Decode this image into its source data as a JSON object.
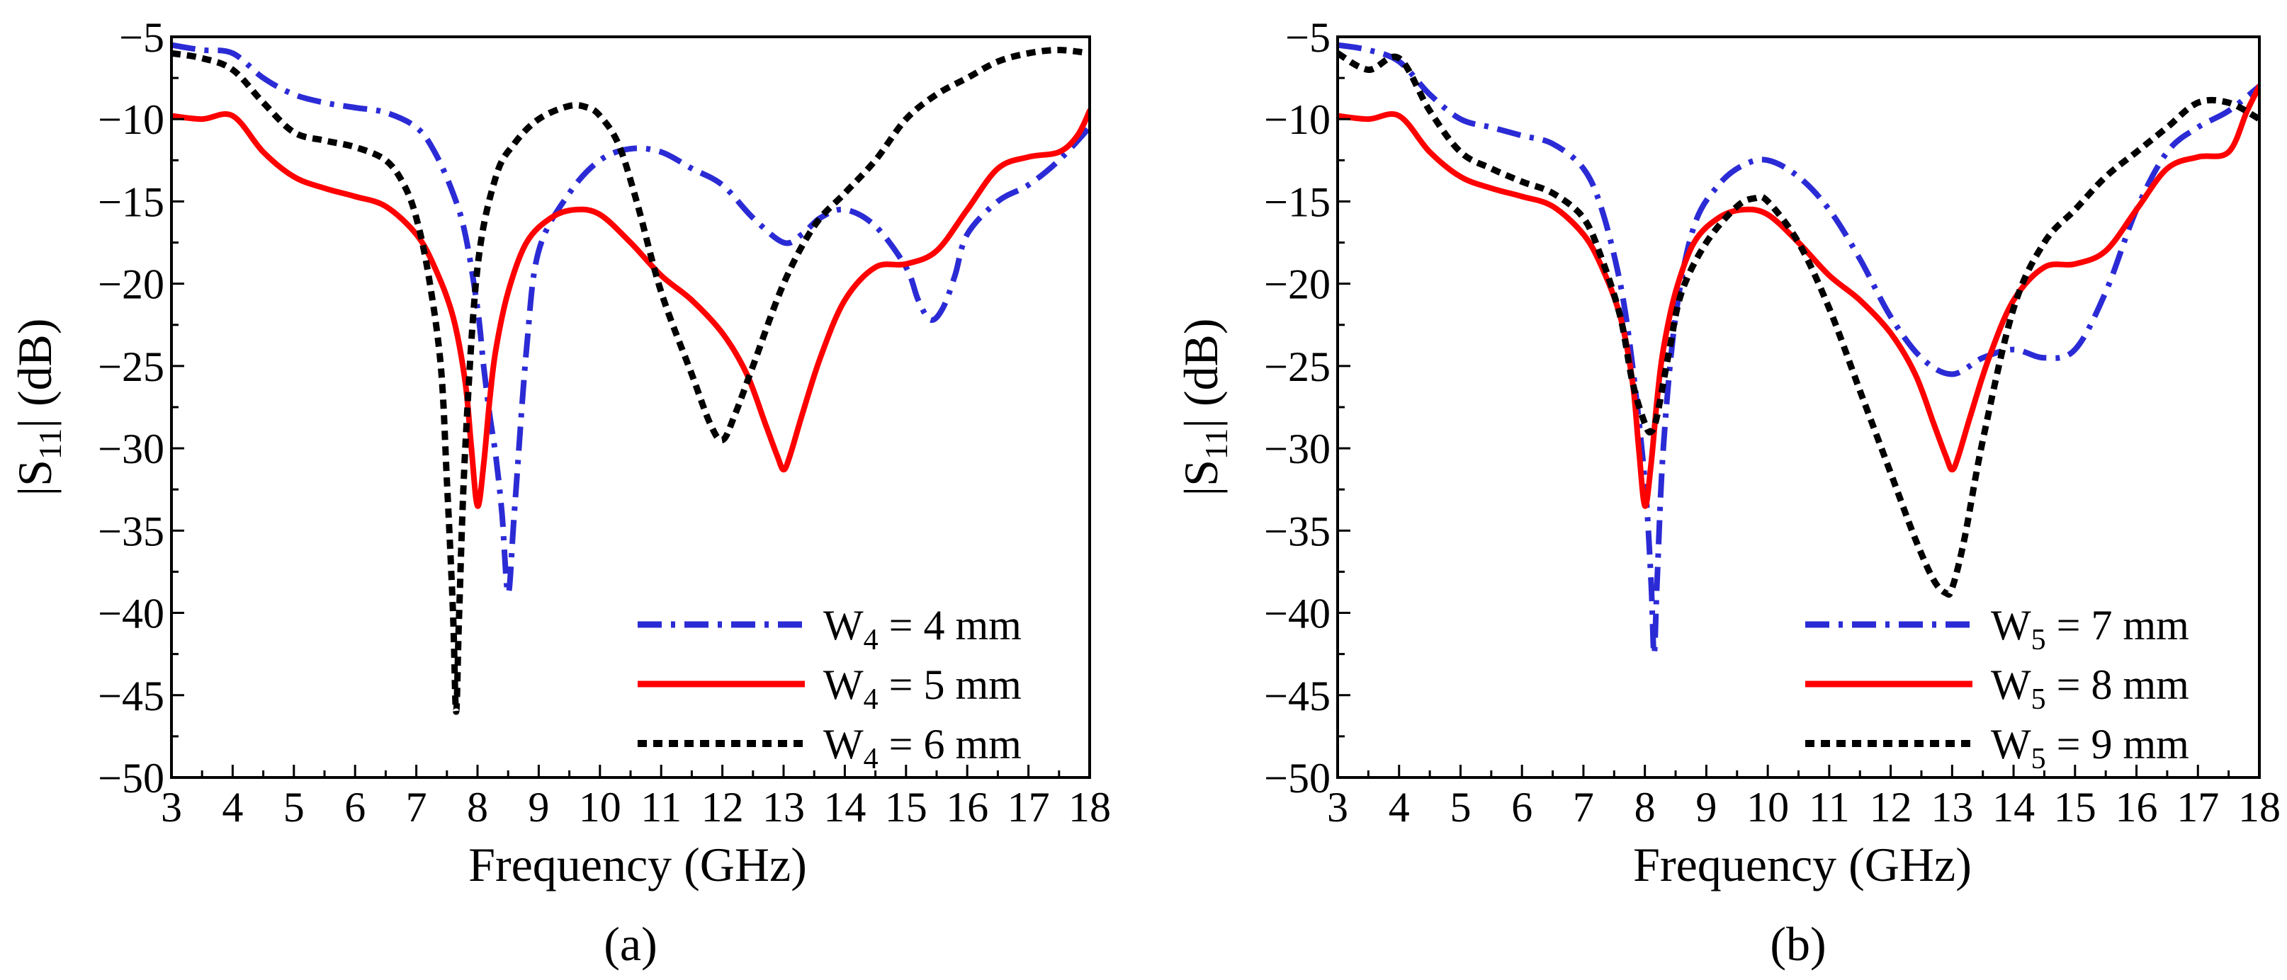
{
  "chart_data": [
    {
      "type": "line",
      "panel_label": "(a)",
      "title": "",
      "xlabel": "Frequency (GHz)",
      "ylabel_main": "|S",
      "ylabel_sub": "11",
      "ylabel_rest": "| (dB)",
      "xlim": [
        3,
        18
      ],
      "ylim": [
        -50,
        -5
      ],
      "xticks": [
        "3",
        "4",
        "5",
        "6",
        "7",
        "8",
        "9",
        "10",
        "11",
        "12",
        "13",
        "14",
        "15",
        "16",
        "17",
        "18"
      ],
      "yticks": [
        "-5",
        "-10",
        "-15",
        "-20",
        "-25",
        "-30",
        "-35",
        "-40",
        "-45",
        "-50"
      ],
      "grid": false,
      "legend_position": "bottom-right",
      "series": [
        {
          "name": "W4 = 4 mm",
          "legend_main": "W",
          "legend_sub": "4",
          "legend_rest": " = 4 mm",
          "color": "#2b2bd6",
          "style": "dashdot",
          "x": [
            3.0,
            3.5,
            4.0,
            4.5,
            5.0,
            5.5,
            6.0,
            6.5,
            7.0,
            7.3,
            7.6,
            7.8,
            8.0,
            8.1,
            8.2,
            8.3,
            8.4,
            8.5,
            8.6,
            8.8,
            9.0,
            9.5,
            10.0,
            10.5,
            11.0,
            11.5,
            12.0,
            12.5,
            13.0,
            13.3,
            13.6,
            14.0,
            14.5,
            15.0,
            15.2,
            15.4,
            15.6,
            15.8,
            16.0,
            16.5,
            17.0,
            17.5,
            18.0
          ],
          "y": [
            -5.5,
            -5.8,
            -6.0,
            -7.5,
            -8.5,
            -9.0,
            -9.3,
            -9.6,
            -10.5,
            -12.0,
            -14.5,
            -17.0,
            -21.5,
            -25.0,
            -28.0,
            -30.5,
            -34.0,
            -38.8,
            -34.0,
            -24.0,
            -18.0,
            -14.5,
            -12.5,
            -11.8,
            -12.0,
            -13.0,
            -14.0,
            -16.0,
            -17.5,
            -17.0,
            -16.0,
            -15.5,
            -16.5,
            -19.0,
            -21.0,
            -22.2,
            -21.5,
            -19.5,
            -17.0,
            -15.0,
            -14.0,
            -12.5,
            -10.5
          ]
        },
        {
          "name": "W4 = 5 mm",
          "legend_main": "W",
          "legend_sub": "4",
          "legend_rest": " = 5 mm",
          "color": "#ff0000",
          "style": "solid",
          "x": [
            3.0,
            3.5,
            4.0,
            4.5,
            5.0,
            5.5,
            6.0,
            6.5,
            7.0,
            7.3,
            7.6,
            7.8,
            7.9,
            8.0,
            8.1,
            8.2,
            8.3,
            8.5,
            8.8,
            9.2,
            9.6,
            10.0,
            10.5,
            11.0,
            11.5,
            12.0,
            12.4,
            12.7,
            12.9,
            13.0,
            13.1,
            13.3,
            13.6,
            14.0,
            14.5,
            15.0,
            15.5,
            16.0,
            16.5,
            17.0,
            17.5,
            17.8,
            18.0
          ],
          "y": [
            -9.8,
            -10.0,
            -9.8,
            -12.0,
            -13.5,
            -14.2,
            -14.7,
            -15.3,
            -17.0,
            -19.0,
            -22.0,
            -26.0,
            -30.0,
            -33.5,
            -31.0,
            -27.0,
            -24.0,
            -20.5,
            -17.5,
            -16.0,
            -15.5,
            -15.8,
            -17.5,
            -19.5,
            -21.0,
            -23.0,
            -25.5,
            -28.5,
            -30.5,
            -31.3,
            -30.5,
            -28.0,
            -24.5,
            -21.0,
            -19.0,
            -18.8,
            -18.0,
            -15.5,
            -13.0,
            -12.3,
            -12.0,
            -11.0,
            -9.5
          ]
        },
        {
          "name": "W4 = 6 mm",
          "legend_main": "W",
          "legend_sub": "4",
          "legend_rest": " = 6 mm",
          "color": "#000000",
          "style": "dotted",
          "x": [
            3.0,
            3.5,
            4.0,
            4.5,
            5.0,
            5.5,
            6.0,
            6.5,
            6.8,
            7.0,
            7.2,
            7.4,
            7.5,
            7.6,
            7.65,
            7.7,
            7.8,
            8.0,
            8.3,
            8.6,
            9.0,
            9.5,
            9.8,
            10.0,
            10.3,
            10.6,
            11.0,
            11.5,
            11.8,
            12.0,
            12.2,
            12.5,
            13.0,
            13.5,
            14.0,
            14.5,
            15.0,
            15.5,
            16.0,
            16.5,
            17.0,
            17.5,
            18.0
          ],
          "y": [
            -6.0,
            -6.3,
            -7.0,
            -9.0,
            -10.8,
            -11.3,
            -11.7,
            -12.5,
            -14.0,
            -16.0,
            -19.5,
            -25.0,
            -32.0,
            -40.0,
            -46.0,
            -40.0,
            -30.0,
            -19.0,
            -13.5,
            -11.5,
            -10.0,
            -9.2,
            -9.3,
            -9.8,
            -11.5,
            -15.0,
            -20.5,
            -25.5,
            -28.5,
            -29.5,
            -28.0,
            -25.0,
            -20.0,
            -16.5,
            -14.5,
            -12.5,
            -10.0,
            -8.5,
            -7.5,
            -6.5,
            -6.0,
            -5.8,
            -6.0
          ]
        }
      ]
    },
    {
      "type": "line",
      "panel_label": "(b)",
      "title": "",
      "xlabel": "Frequency (GHz)",
      "ylabel_main": "|S",
      "ylabel_sub": "11",
      "ylabel_rest": "| (dB)",
      "xlim": [
        3,
        18
      ],
      "ylim": [
        -50,
        -5
      ],
      "xticks": [
        "3",
        "4",
        "5",
        "6",
        "7",
        "8",
        "9",
        "10",
        "11",
        "12",
        "13",
        "14",
        "15",
        "16",
        "17",
        "18"
      ],
      "yticks": [
        "-5",
        "-10",
        "-15",
        "-20",
        "-25",
        "-30",
        "-35",
        "-40",
        "-45",
        "-50"
      ],
      "grid": false,
      "legend_position": "bottom-right",
      "series": [
        {
          "name": "W5 = 7 mm",
          "legend_main": "W",
          "legend_sub": "5",
          "legend_rest": " = 7 mm",
          "color": "#2b2bd6",
          "style": "dashdot",
          "x": [
            3.0,
            3.5,
            4.0,
            4.5,
            5.0,
            5.5,
            6.0,
            6.5,
            7.0,
            7.3,
            7.6,
            7.8,
            8.0,
            8.1,
            8.15,
            8.2,
            8.3,
            8.5,
            8.8,
            9.2,
            9.6,
            10.0,
            10.5,
            11.0,
            11.5,
            12.0,
            12.5,
            13.0,
            13.5,
            14.0,
            14.5,
            15.0,
            15.5,
            16.0,
            16.5,
            17.0,
            17.5,
            18.0
          ],
          "y": [
            -5.5,
            -5.8,
            -6.5,
            -8.5,
            -10.0,
            -10.5,
            -11.0,
            -11.5,
            -13.0,
            -15.5,
            -20.0,
            -25.0,
            -32.0,
            -38.0,
            -42.5,
            -38.0,
            -30.0,
            -22.0,
            -16.5,
            -14.0,
            -12.8,
            -12.5,
            -13.5,
            -15.5,
            -18.5,
            -22.0,
            -24.5,
            -25.5,
            -24.5,
            -24.0,
            -24.5,
            -24.0,
            -20.5,
            -15.5,
            -12.0,
            -10.5,
            -9.5,
            -8.0
          ]
        },
        {
          "name": "W5 = 8 mm",
          "legend_main": "W",
          "legend_sub": "5",
          "legend_rest": " = 8 mm",
          "color": "#ff0000",
          "style": "solid",
          "x": [
            3.0,
            3.5,
            4.0,
            4.5,
            5.0,
            5.5,
            6.0,
            6.5,
            7.0,
            7.3,
            7.6,
            7.8,
            7.9,
            8.0,
            8.1,
            8.2,
            8.3,
            8.5,
            8.8,
            9.2,
            9.6,
            10.0,
            10.5,
            11.0,
            11.5,
            12.0,
            12.4,
            12.7,
            12.9,
            13.0,
            13.1,
            13.3,
            13.6,
            14.0,
            14.5,
            15.0,
            15.5,
            16.0,
            16.5,
            17.0,
            17.5,
            17.8,
            18.0
          ],
          "y": [
            -9.8,
            -10.0,
            -9.8,
            -12.0,
            -13.5,
            -14.2,
            -14.7,
            -15.3,
            -17.0,
            -19.0,
            -22.0,
            -26.0,
            -30.0,
            -33.5,
            -31.0,
            -27.0,
            -24.0,
            -20.5,
            -17.5,
            -16.0,
            -15.5,
            -15.8,
            -17.5,
            -19.5,
            -21.0,
            -23.0,
            -25.5,
            -28.5,
            -30.5,
            -31.3,
            -30.5,
            -28.0,
            -24.5,
            -21.0,
            -19.0,
            -18.8,
            -18.0,
            -15.5,
            -13.0,
            -12.3,
            -12.0,
            -9.5,
            -8.0
          ]
        },
        {
          "name": "W5 = 9 mm",
          "legend_main": "W",
          "legend_sub": "5",
          "legend_rest": " = 9 mm",
          "color": "#000000",
          "style": "dotted",
          "x": [
            3.0,
            3.5,
            4.0,
            4.5,
            5.0,
            5.5,
            6.0,
            6.5,
            7.0,
            7.3,
            7.6,
            7.8,
            8.0,
            8.1,
            8.2,
            8.4,
            8.6,
            9.0,
            9.5,
            9.8,
            10.0,
            10.5,
            11.0,
            11.5,
            12.0,
            12.4,
            12.7,
            12.9,
            13.0,
            13.2,
            13.5,
            14.0,
            14.5,
            15.0,
            15.5,
            16.0,
            16.5,
            17.0,
            17.5,
            18.0
          ],
          "y": [
            -6.0,
            -7.0,
            -6.3,
            -9.5,
            -12.0,
            -13.0,
            -13.8,
            -14.5,
            -16.0,
            -18.5,
            -22.0,
            -26.0,
            -28.5,
            -29.0,
            -28.0,
            -24.0,
            -20.5,
            -17.5,
            -15.3,
            -14.8,
            -15.0,
            -17.5,
            -21.5,
            -26.5,
            -31.5,
            -35.5,
            -38.0,
            -38.8,
            -38.5,
            -35.5,
            -29.5,
            -21.5,
            -17.5,
            -15.5,
            -13.5,
            -12.0,
            -10.5,
            -9.0,
            -9.0,
            -10.0
          ]
        }
      ]
    }
  ]
}
